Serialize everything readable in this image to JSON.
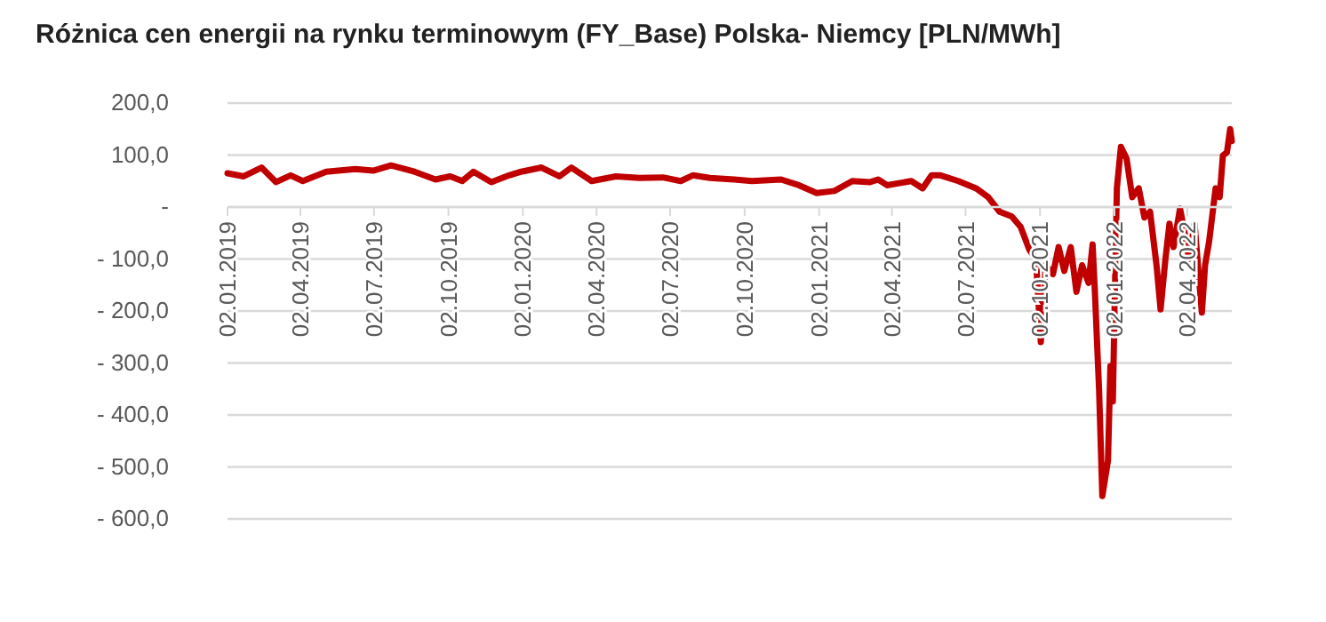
{
  "chart_data": {
    "type": "line",
    "title": "Różnica cen energii na rynku terminowym (FY_Base) Polska- Niemcy [PLN/MWh]",
    "x": [
      "2019-01-02",
      "2019-01-22",
      "2019-02-13",
      "2019-03-03",
      "2019-03-21",
      "2019-04-05",
      "2019-05-04",
      "2019-06-09",
      "2019-07-01",
      "2019-07-23",
      "2019-08-21",
      "2019-09-16",
      "2019-10-04",
      "2019-10-19",
      "2019-11-02",
      "2019-11-24",
      "2019-12-16",
      "2019-12-31",
      "2020-01-25",
      "2020-02-16",
      "2020-03-02",
      "2020-03-27",
      "2020-04-26",
      "2020-05-25",
      "2020-06-23",
      "2020-07-15",
      "2020-07-30",
      "2020-08-20",
      "2020-09-19",
      "2020-10-11",
      "2020-11-16",
      "2020-12-08",
      "2020-12-30",
      "2021-01-21",
      "2021-02-12",
      "2021-03-06",
      "2021-03-16",
      "2021-03-27",
      "2021-04-26",
      "2021-05-10",
      "2021-05-21",
      "2021-06-01",
      "2021-06-23",
      "2021-07-15",
      "2021-07-30",
      "2021-08-13",
      "2021-08-28",
      "2021-09-08",
      "2021-09-19",
      "2021-09-27",
      "2021-10-03",
      "2021-10-09",
      "2021-10-18",
      "2021-10-25",
      "2021-11-01",
      "2021-11-09",
      "2021-11-16",
      "2021-11-23",
      "2021-12-01",
      "2021-12-06",
      "2021-12-09",
      "2021-12-14",
      "2021-12-18",
      "2021-12-25",
      "2021-12-28",
      "2021-12-31",
      "2022-01-05",
      "2022-01-10",
      "2022-01-17",
      "2022-01-24",
      "2022-02-01",
      "2022-02-08",
      "2022-02-15",
      "2022-02-23",
      "2022-02-28",
      "2022-03-06",
      "2022-03-11",
      "2022-03-16",
      "2022-03-24",
      "2022-03-29",
      "2022-04-04",
      "2022-04-11",
      "2022-04-20",
      "2022-04-24",
      "2022-04-29",
      "2022-05-07",
      "2022-05-12",
      "2022-05-16",
      "2022-05-21",
      "2022-05-25",
      "2022-05-27"
    ],
    "series": [
      {
        "color": "#c00000",
        "values": [
          65,
          59,
          76,
          48,
          61,
          50,
          68,
          73,
          70,
          80,
          68,
          53,
          59,
          50,
          68,
          48,
          61,
          68,
          76,
          59,
          76,
          50,
          59,
          56,
          57,
          50,
          61,
          56,
          53,
          50,
          53,
          42,
          27,
          31,
          50,
          48,
          53,
          42,
          50,
          36,
          61,
          61,
          50,
          36,
          19,
          -9,
          -18,
          -38,
          -83,
          -100,
          -260,
          -112,
          -129,
          -77,
          -123,
          -77,
          -163,
          -112,
          -146,
          -72,
          -169,
          -351,
          -556,
          -488,
          -306,
          -374,
          36,
          116,
          93,
          19,
          36,
          -20,
          -9,
          -112,
          -197,
          -100,
          -32,
          -77,
          -3,
          -43,
          -100,
          -32,
          -203,
          -112,
          -66,
          36,
          19,
          99,
          105,
          150,
          127
        ]
      }
    ],
    "xlim": [
      "2019-01-02",
      "2022-05-27"
    ],
    "xticks": [
      {
        "value": "2019-01-02",
        "label": "02.01.2019"
      },
      {
        "value": "2019-04-02",
        "label": "02.04.2019"
      },
      {
        "value": "2019-07-02",
        "label": "02.07.2019"
      },
      {
        "value": "2019-10-02",
        "label": "02.10.2019"
      },
      {
        "value": "2020-01-02",
        "label": "02.01.2020"
      },
      {
        "value": "2020-04-02",
        "label": "02.04.2020"
      },
      {
        "value": "2020-07-02",
        "label": "02.07.2020"
      },
      {
        "value": "2020-10-02",
        "label": "02.10.2020"
      },
      {
        "value": "2021-01-02",
        "label": "02.01.2021"
      },
      {
        "value": "2021-04-02",
        "label": "02.04.2021"
      },
      {
        "value": "2021-07-02",
        "label": "02.07.2021"
      },
      {
        "value": "2021-10-02",
        "label": "02.10.2021"
      },
      {
        "value": "2022-01-02",
        "label": "02.01.2022"
      },
      {
        "value": "2022-04-02",
        "label": "02.04.2022"
      }
    ],
    "ylim": [
      -600,
      200
    ],
    "yticks": [
      {
        "value": 200,
        "label": "200,0"
      },
      {
        "value": 100,
        "label": "100,0"
      },
      {
        "value": 0,
        "label": "-"
      },
      {
        "value": -100,
        "label": "- 100,0"
      },
      {
        "value": -200,
        "label": "- 200,0"
      },
      {
        "value": -300,
        "label": "- 300,0"
      },
      {
        "value": -400,
        "label": "- 400,0"
      },
      {
        "value": -500,
        "label": "- 500,0"
      },
      {
        "value": -600,
        "label": "- 600,0"
      }
    ],
    "grid": "y",
    "marker": "none",
    "line_style": "solid"
  }
}
